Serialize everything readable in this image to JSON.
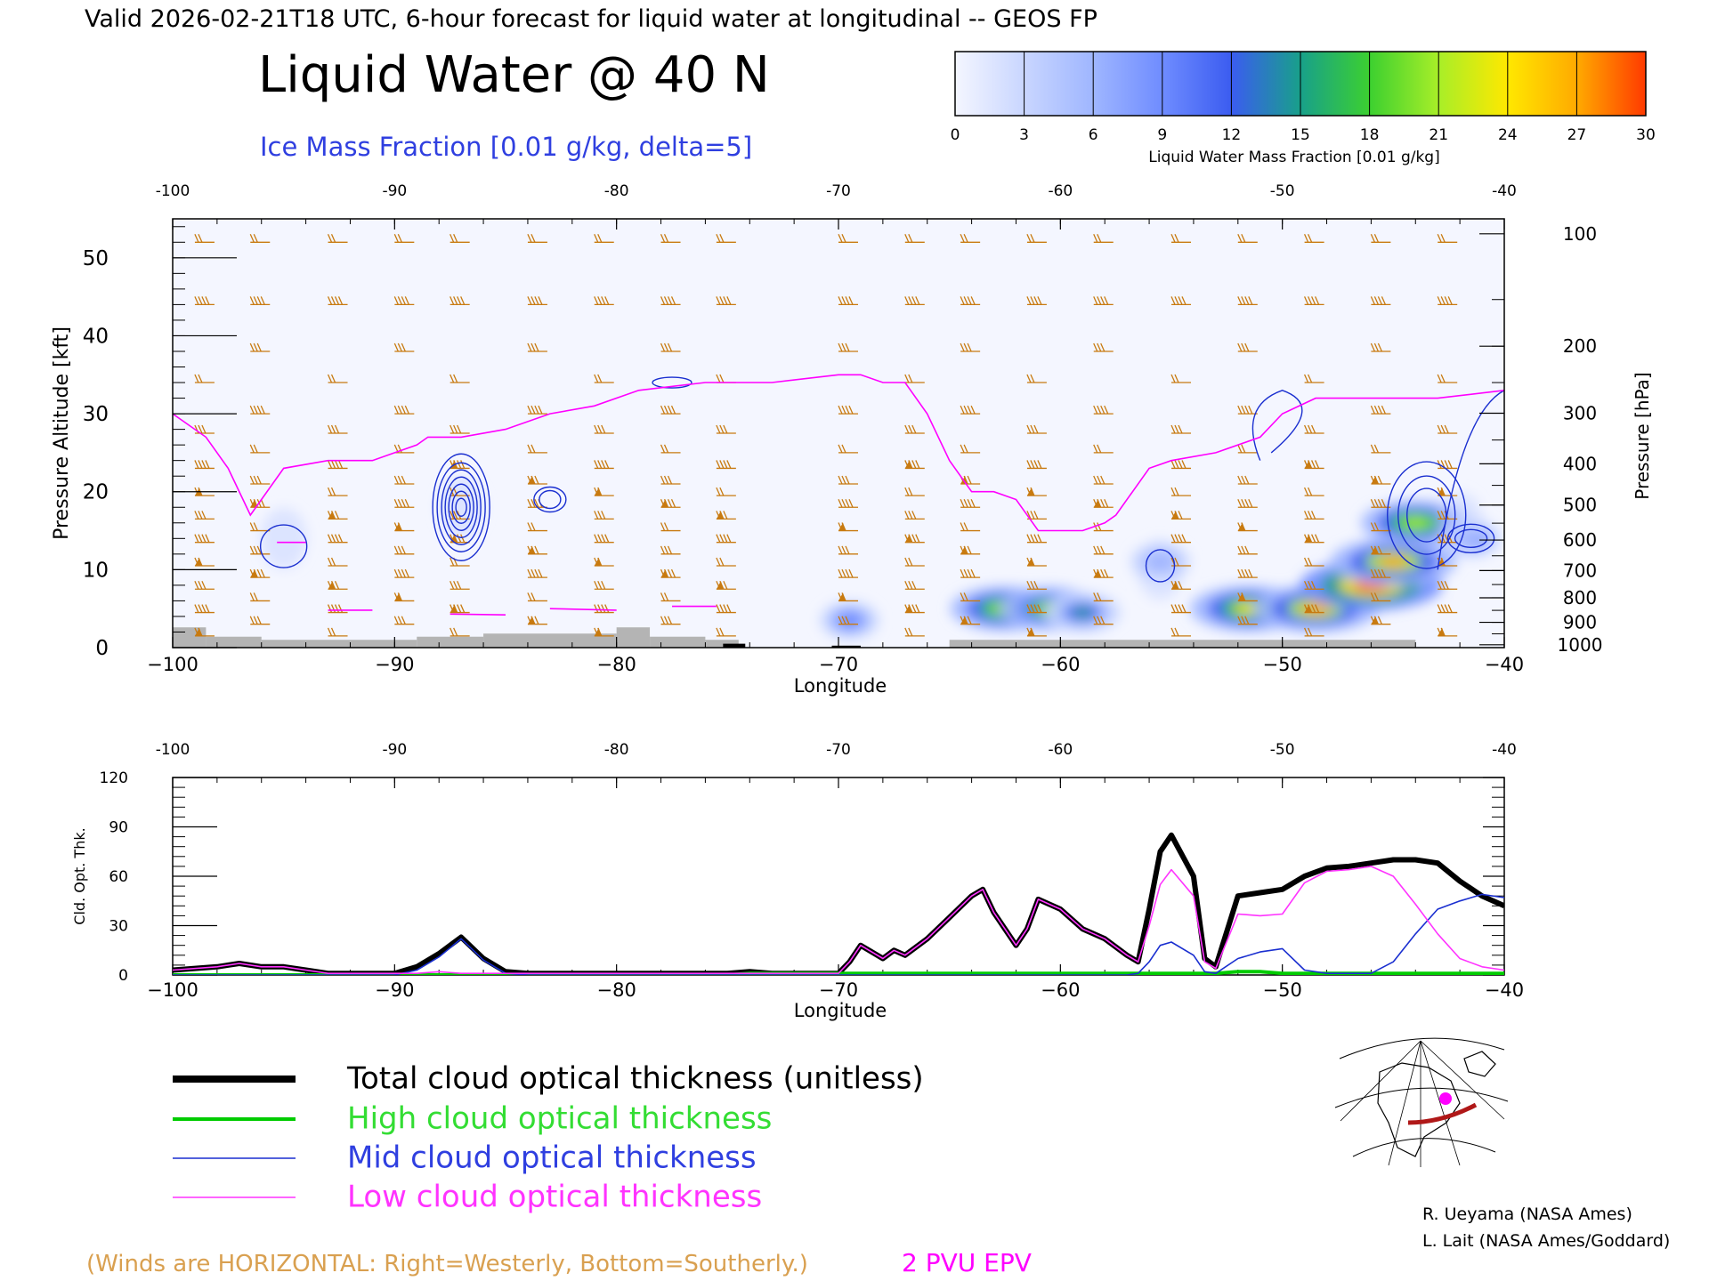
{
  "header": {
    "valid_line": "Valid 2026-02-21T18 UTC, 6-hour forecast for liquid water at longitudinal -- GEOS FP",
    "main_title": "Liquid Water @ 40 N",
    "ice_label": "Ice Mass Fraction [0.01 g/kg, delta=5]"
  },
  "colorbar": {
    "ticks": [
      "0",
      "3",
      "6",
      "9",
      "12",
      "15",
      "18",
      "21",
      "24",
      "27",
      "30"
    ],
    "label": "Liquid Water Mass Fraction [0.01 g/kg]",
    "colors": [
      "#f4f6ff",
      "#c9d6ff",
      "#9fb6ff",
      "#6f8cff",
      "#3b5cf0",
      "#18a08a",
      "#3cd030",
      "#a8ee28",
      "#ffe800",
      "#ffaa00",
      "#ff3a00"
    ]
  },
  "colors": {
    "wind": "#c87a10",
    "ice": "#1a2fd0",
    "epv": "#ff00ff",
    "axis_blue": "#2f3fe0",
    "total": "#000000",
    "high": "#00cc00",
    "mid": "#1a2fd0",
    "low": "#ff33ff",
    "footnote": "#d9a050",
    "ground": "#b4b4b4"
  },
  "top_panel": {
    "xlabel": "Longitude",
    "ylabel_left": "Pressure Altitude [kft]",
    "ylabel_right": "Pressure [hPa]",
    "x_ticks": [
      "−100",
      "−90",
      "−80",
      "−70",
      "−60",
      "−50",
      "−40"
    ],
    "x_top_ticks": [
      "-100",
      "-90",
      "-80",
      "-70",
      "-60",
      "-50",
      "-40"
    ],
    "y_ticks": [
      "0",
      "10",
      "20",
      "30",
      "40",
      "50"
    ],
    "p_ticks": [
      "100",
      "200",
      "300",
      "400",
      "500",
      "600",
      "700",
      "800",
      "900",
      "1000"
    ]
  },
  "bottom_panel": {
    "xlabel": "Longitude",
    "ylabel": "Cld. Opt. Thk.",
    "x_ticks": [
      "−100",
      "−90",
      "−80",
      "−70",
      "−60",
      "−50",
      "−40"
    ],
    "x_top_ticks": [
      "-100",
      "-90",
      "-80",
      "-70",
      "-60",
      "-50",
      "-40"
    ],
    "y_ticks": [
      "0",
      "30",
      "60",
      "90",
      "120"
    ]
  },
  "chart_data": [
    {
      "type": "heatmap",
      "title": "Liquid Water @ 40 N",
      "xlabel": "Longitude",
      "ylabel": "Pressure Altitude [kft]",
      "xlim": [
        -100,
        -40
      ],
      "ylim": [
        0,
        55
      ],
      "colorbar_range": [
        0,
        30
      ],
      "liquid_water_blobs": [
        {
          "lon": -69.5,
          "alt": 3.5,
          "peak": 10
        },
        {
          "lon": -62.5,
          "alt": 5,
          "peak": 22
        },
        {
          "lon": -60.5,
          "alt": 5,
          "peak": 20
        },
        {
          "lon": -59,
          "alt": 4.5,
          "peak": 14
        },
        {
          "lon": -55.5,
          "alt": 11,
          "peak": 10
        },
        {
          "lon": -51.5,
          "alt": 5,
          "peak": 24
        },
        {
          "lon": -48.5,
          "alt": 5,
          "peak": 26
        },
        {
          "lon": -46,
          "alt": 8,
          "peak": 30
        },
        {
          "lon": -45,
          "alt": 11,
          "peak": 26
        },
        {
          "lon": -44,
          "alt": 16,
          "peak": 22
        },
        {
          "lon": -41.5,
          "alt": 14,
          "peak": 10
        }
      ],
      "epv_2pvu_line": {
        "lon": [
          -100,
          -98.5,
          -97.5,
          -96.5,
          -95,
          -93,
          -91,
          -89,
          -88.5,
          -87,
          -85,
          -83,
          -81,
          -79,
          -76,
          -73,
          -70,
          -69,
          -68,
          -67,
          -66,
          -65,
          -64,
          -63,
          -62,
          -61,
          -60,
          -59,
          -58,
          -57.5,
          -56,
          -55,
          -53,
          -51,
          -50,
          -48.5,
          -47,
          -45,
          -43,
          -40
        ],
        "alt": [
          30,
          27,
          23,
          17,
          23,
          24,
          24,
          26,
          27,
          27,
          28,
          30,
          31,
          33,
          34,
          34,
          35,
          35,
          34,
          34,
          30,
          24,
          20,
          20,
          19,
          15,
          15,
          15,
          16,
          17,
          23,
          24,
          25,
          27,
          30,
          32,
          32,
          32,
          32,
          33
        ]
      }
    },
    {
      "type": "line",
      "xlabel": "Longitude",
      "ylabel": "Cld. Opt. Thk.",
      "xlim": [
        -100,
        -40
      ],
      "ylim": [
        0,
        120
      ],
      "x": [
        -100,
        -98,
        -97,
        -96,
        -95,
        -94,
        -93,
        -92,
        -91,
        -90,
        -89,
        -88,
        -87,
        -86,
        -85,
        -84,
        -83,
        -82,
        -81,
        -80,
        -79,
        -78,
        -77,
        -76,
        -75,
        -74,
        -73,
        -72,
        -71,
        -70,
        -69.5,
        -69,
        -68,
        -67.5,
        -67,
        -66,
        -65,
        -64,
        -63.5,
        -63,
        -62,
        -61.5,
        -61,
        -60,
        -59,
        -58,
        -57,
        -56.5,
        -56,
        -55.5,
        -55,
        -54,
        -53.5,
        -53,
        -52,
        -51,
        -50,
        -49,
        -48,
        -47,
        -46,
        -45,
        -44,
        -43,
        -42,
        -41,
        -40
      ],
      "series": [
        {
          "name": "Total cloud optical thickness (unitless)",
          "values": [
            3,
            5,
            7,
            5,
            5,
            3,
            1,
            1,
            1,
            1,
            5,
            13,
            23,
            10,
            2,
            1,
            1,
            1,
            1,
            1,
            1,
            1,
            1,
            1,
            1,
            2,
            1,
            1,
            1,
            1,
            8,
            18,
            10,
            15,
            12,
            22,
            35,
            48,
            52,
            38,
            18,
            28,
            46,
            40,
            28,
            22,
            12,
            8,
            40,
            75,
            85,
            60,
            10,
            5,
            48,
            50,
            52,
            60,
            65,
            66,
            68,
            70,
            70,
            68,
            57,
            48,
            42
          ]
        },
        {
          "name": "High cloud optical thickness",
          "values": [
            0,
            0,
            0,
            0,
            0,
            0,
            0,
            0,
            0,
            0,
            0,
            0,
            0,
            0,
            0,
            0,
            0,
            0,
            0,
            0,
            0,
            0,
            0,
            0,
            0,
            1,
            1,
            1,
            1,
            1,
            1,
            1,
            1,
            1,
            1,
            1,
            1,
            1,
            1,
            1,
            1,
            1,
            1,
            1,
            1,
            1,
            1,
            1,
            1,
            1,
            1,
            1,
            1,
            1,
            2,
            2,
            1,
            1,
            1,
            1,
            1,
            1,
            1,
            1,
            1,
            1,
            1
          ]
        },
        {
          "name": "Mid cloud optical thickness",
          "values": [
            0,
            0,
            0,
            0,
            0,
            0,
            0,
            0,
            0,
            0,
            3,
            11,
            22,
            9,
            1,
            0,
            0,
            0,
            0,
            0,
            0,
            0,
            0,
            0,
            0,
            0,
            0,
            0,
            0,
            0,
            0,
            0,
            0,
            0,
            0,
            0,
            0,
            0,
            0,
            0,
            0,
            0,
            0,
            0,
            0,
            0,
            0,
            1,
            8,
            18,
            20,
            12,
            2,
            1,
            10,
            14,
            16,
            3,
            1,
            1,
            1,
            8,
            25,
            40,
            45,
            49,
            47
          ]
        },
        {
          "name": "Low cloud optical thickness",
          "values": [
            3,
            5,
            7,
            5,
            5,
            3,
            1,
            1,
            1,
            1,
            1,
            2,
            1,
            1,
            1,
            1,
            1,
            1,
            1,
            1,
            1,
            1,
            1,
            1,
            1,
            1,
            1,
            1,
            1,
            1,
            8,
            18,
            10,
            15,
            12,
            22,
            35,
            48,
            52,
            38,
            18,
            28,
            46,
            40,
            28,
            22,
            12,
            8,
            30,
            55,
            64,
            48,
            8,
            4,
            37,
            36,
            37,
            56,
            63,
            64,
            66,
            60,
            43,
            25,
            10,
            5,
            3
          ]
        }
      ]
    }
  ],
  "legend": {
    "total": "Total cloud optical thickness (unitless)",
    "high": "High cloud optical thickness",
    "mid": "Mid cloud optical thickness",
    "low": "Low cloud optical thickness"
  },
  "footer": {
    "winds_note": "(Winds are HORIZONTAL: Right=Westerly, Bottom=Southerly.)",
    "epv_note": "2 PVU EPV",
    "credit1": "R. Ueyama (NASA Ames)",
    "credit2": "L. Lait (NASA Ames/Goddard)"
  }
}
